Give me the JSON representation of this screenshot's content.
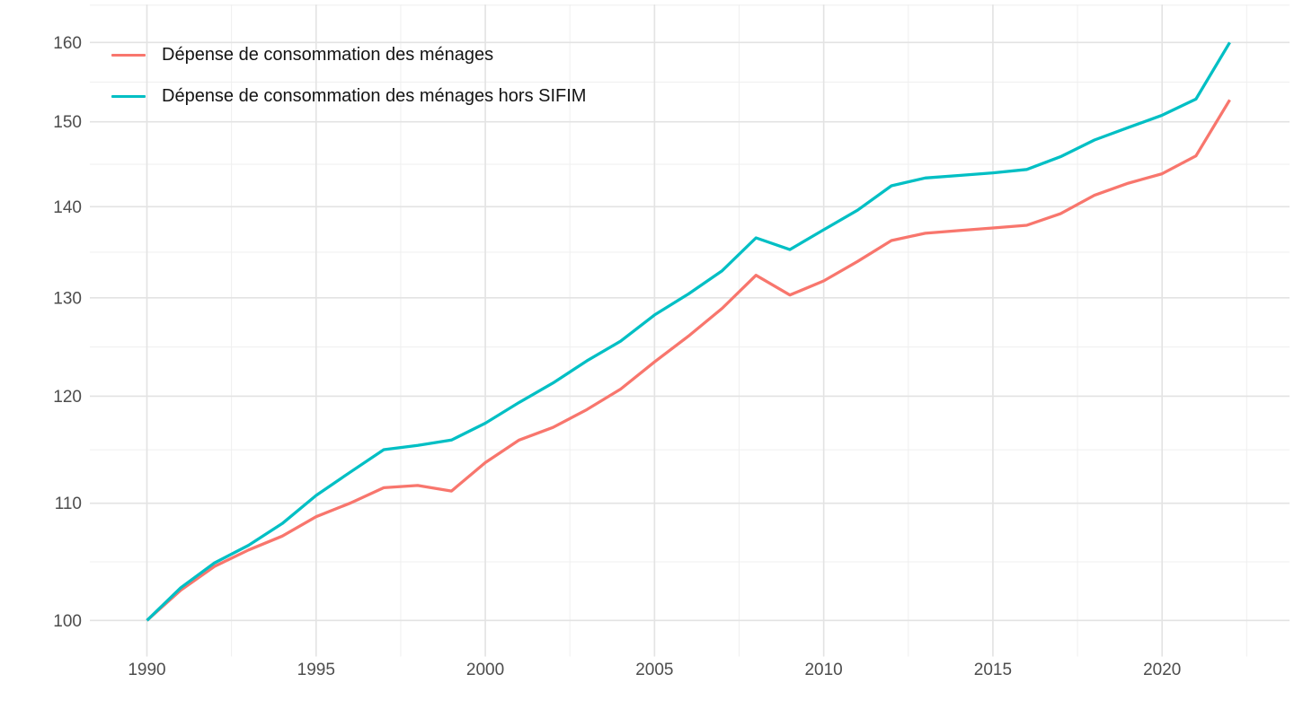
{
  "chart_data": {
    "type": "line",
    "y_scale": "log",
    "grid": true,
    "legend_position": "top-left-inside",
    "x": [
      1990,
      1991,
      1992,
      1993,
      1994,
      1995,
      1996,
      1997,
      1998,
      1999,
      2000,
      2001,
      2002,
      2003,
      2004,
      2005,
      2006,
      2007,
      2008,
      2009,
      2010,
      2011,
      2012,
      2013,
      2014,
      2015,
      2016,
      2017,
      2018,
      2019,
      2020,
      2021,
      2022
    ],
    "series": [
      {
        "name": "Dépense de consommation des ménages",
        "color": "#F8766D",
        "values": [
          100,
          102.5,
          104.5,
          105.9,
          107.1,
          108.8,
          110.0,
          111.4,
          111.6,
          111.1,
          113.7,
          115.8,
          117.0,
          118.7,
          120.7,
          123.4,
          126.0,
          128.9,
          132.4,
          130.3,
          131.8,
          133.9,
          136.2,
          137.0,
          137.3,
          137.6,
          137.9,
          139.2,
          141.3,
          142.7,
          143.8,
          145.9,
          152.7
        ]
      },
      {
        "name": "Dépense de consommation des ménages hors SIFIM",
        "color": "#00BFC4",
        "values": [
          100,
          102.7,
          104.8,
          106.3,
          108.2,
          110.7,
          112.8,
          114.9,
          115.3,
          115.8,
          117.4,
          119.4,
          121.3,
          123.5,
          125.5,
          128.2,
          130.4,
          132.9,
          136.5,
          135.2,
          137.4,
          139.6,
          142.4,
          143.3,
          143.6,
          143.9,
          144.3,
          145.8,
          147.8,
          149.3,
          150.8,
          152.8,
          160.0
        ]
      }
    ],
    "x_ticks": [
      1990,
      1995,
      2000,
      2005,
      2010,
      2015,
      2020
    ],
    "x_tick_labels": [
      "1990",
      "1995",
      "2000",
      "2005",
      "2010",
      "2015",
      "2020"
    ],
    "y_ticks": [
      100,
      110,
      120,
      130,
      140,
      150,
      160
    ],
    "y_tick_labels": [
      "100",
      "110",
      "120",
      "130",
      "140",
      "150",
      "160"
    ],
    "xlabel": "",
    "ylabel": "",
    "colors": {
      "grid_major": "#e3e3e3",
      "grid_minor": "#efefef",
      "axis_text": "#4d4d4d",
      "background": "#ffffff"
    }
  }
}
